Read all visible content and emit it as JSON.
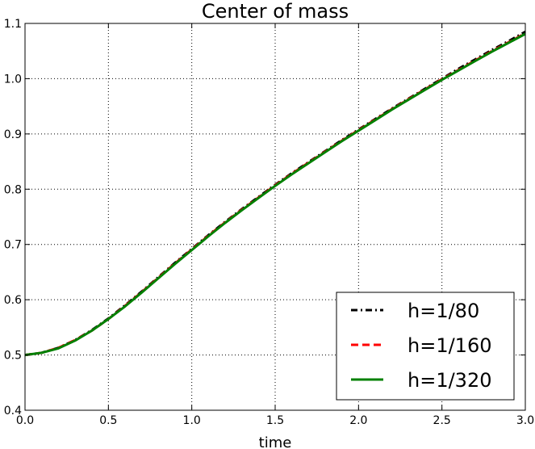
{
  "chart_data": {
    "type": "line",
    "title": "Center of mass",
    "xlabel": "time",
    "ylabel": "",
    "xlim": [
      0.0,
      3.0
    ],
    "ylim": [
      0.4,
      1.1
    ],
    "xticks": [
      "0.0",
      "0.5",
      "1.0",
      "1.5",
      "2.0",
      "2.5",
      "3.0"
    ],
    "yticks": [
      "0.4",
      "0.5",
      "0.6",
      "0.7",
      "0.8",
      "0.9",
      "1.0",
      "1.1"
    ],
    "grid": true,
    "legend_position": "bottom-right",
    "x": [
      0.0,
      0.1,
      0.2,
      0.3,
      0.4,
      0.5,
      0.6,
      0.7,
      0.8,
      0.9,
      1.0,
      1.1,
      1.2,
      1.3,
      1.4,
      1.5,
      1.6,
      1.7,
      1.8,
      1.9,
      2.0,
      2.1,
      2.2,
      2.3,
      2.4,
      2.5,
      2.6,
      2.7,
      2.8,
      2.9,
      3.0
    ],
    "series": [
      {
        "name": "h=1/80",
        "color": "#000000",
        "style": "dashdot",
        "values": [
          0.5,
          0.504,
          0.513,
          0.527,
          0.545,
          0.566,
          0.59,
          0.615,
          0.641,
          0.667,
          0.692,
          0.717,
          0.741,
          0.764,
          0.786,
          0.808,
          0.829,
          0.849,
          0.869,
          0.889,
          0.908,
          0.927,
          0.946,
          0.964,
          0.982,
          1.0,
          1.018,
          1.035,
          1.052,
          1.068,
          1.085
        ]
      },
      {
        "name": "h=1/160",
        "color": "#ff0000",
        "style": "dashed",
        "values": [
          0.5,
          0.504,
          0.513,
          0.527,
          0.544,
          0.565,
          0.589,
          0.614,
          0.64,
          0.666,
          0.691,
          0.716,
          0.74,
          0.763,
          0.785,
          0.807,
          0.828,
          0.848,
          0.868,
          0.888,
          0.907,
          0.926,
          0.945,
          0.963,
          0.981,
          0.999,
          1.016,
          1.033,
          1.05,
          1.066,
          1.082
        ]
      },
      {
        "name": "h=1/320",
        "color": "#008000",
        "style": "solid",
        "values": [
          0.5,
          0.504,
          0.512,
          0.526,
          0.544,
          0.565,
          0.588,
          0.613,
          0.639,
          0.665,
          0.69,
          0.715,
          0.739,
          0.762,
          0.784,
          0.806,
          0.827,
          0.847,
          0.867,
          0.887,
          0.906,
          0.925,
          0.944,
          0.962,
          0.98,
          0.998,
          1.015,
          1.032,
          1.049,
          1.065,
          1.081
        ]
      }
    ]
  }
}
